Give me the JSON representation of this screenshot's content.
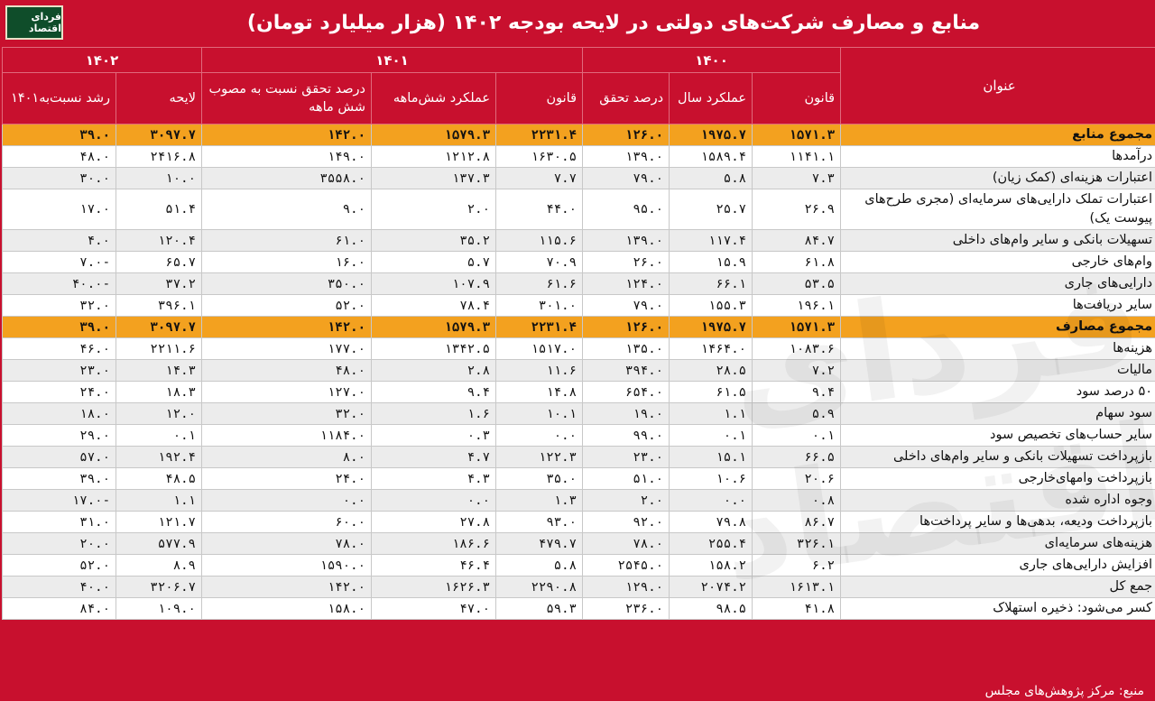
{
  "title": "منابع و مصارف شرکت‌های دولتی در لایحه بودجه ۱۴۰۲ (هزار میلیارد تومان)",
  "logo_text": "فردای اقتصاد",
  "watermark_text": "فردای اقتصاد",
  "header": {
    "row_label": "عنوان",
    "years": [
      "۱۴۰۰",
      "۱۴۰۱",
      "۱۴۰۲"
    ],
    "columns": [
      "قانون",
      "عملکرد سال",
      "درصد تحقق",
      "قانون",
      "عملکرد شش‌ماهه",
      "درصد تحقق نسبت به مصوب شش ماهه",
      "لایحه",
      "رشد نسبت‌به۱۴۰۱"
    ]
  },
  "rows": [
    {
      "label": "مجموع منابع",
      "total": true,
      "values": [
        "۱۵۷۱.۳",
        "۱۹۷۵.۷",
        "۱۲۶.۰",
        "۲۲۳۱.۴",
        "۱۵۷۹.۳",
        "۱۴۲.۰",
        "۳۰۹۷.۷",
        "۳۹.۰"
      ]
    },
    {
      "label": "درآمدها",
      "values": [
        "۱۱۴۱.۱",
        "۱۵۸۹.۴",
        "۱۳۹.۰",
        "۱۶۳۰.۵",
        "۱۲۱۲.۸",
        "۱۴۹.۰",
        "۲۴۱۶.۸",
        "۴۸.۰"
      ]
    },
    {
      "label": "اعتبارات هزینه‌ای (کمک زیان)",
      "values": [
        "۷.۳",
        "۵.۸",
        "۷۹.۰",
        "۷.۷",
        "۱۳۷.۳",
        "۳۵۵۸.۰",
        "۱۰.۰",
        "۳۰.۰"
      ]
    },
    {
      "label": "اعتبارات تملک دارایی‌های سرمایه‌ای (مجری طرح‌های پیوست یک)",
      "tall": true,
      "values": [
        "۲۶.۹",
        "۲۵.۷",
        "۹۵.۰",
        "۴۴.۰",
        "۲.۰",
        "۹.۰",
        "۵۱.۴",
        "۱۷.۰"
      ]
    },
    {
      "label": "تسهیلات بانکی و سایر وام‌های داخلی",
      "values": [
        "۸۴.۷",
        "۱۱۷.۴",
        "۱۳۹.۰",
        "۱۱۵.۶",
        "۳۵.۲",
        "۶۱.۰",
        "۱۲۰.۴",
        "۴.۰"
      ]
    },
    {
      "label": "وام‌های خارجی",
      "values": [
        "۶۱.۸",
        "۱۵.۹",
        "۲۶.۰",
        "۷۰.۹",
        "۵.۷",
        "۱۶.۰",
        "۶۵.۷",
        "-۷.۰"
      ]
    },
    {
      "label": "دارایی‌های جاری",
      "values": [
        "۵۳.۵",
        "۶۶.۱",
        "۱۲۴.۰",
        "۶۱.۶",
        "۱۰۷.۹",
        "۳۵۰.۰",
        "۳۷.۲",
        "-۴۰.۰"
      ]
    },
    {
      "label": "سایر دریافت‌ها",
      "values": [
        "۱۹۶.۱",
        "۱۵۵.۳",
        "۷۹.۰",
        "۳۰۱.۰",
        "۷۸.۴",
        "۵۲.۰",
        "۳۹۶.۱",
        "۳۲.۰"
      ]
    },
    {
      "label": "مجموع مصارف",
      "total": true,
      "values": [
        "۱۵۷۱.۳",
        "۱۹۷۵.۷",
        "۱۲۶.۰",
        "۲۲۳۱.۴",
        "۱۵۷۹.۳",
        "۱۴۲.۰",
        "۳۰۹۷.۷",
        "۳۹.۰"
      ]
    },
    {
      "label": "هزینه‌ها",
      "values": [
        "۱۰۸۳.۶",
        "۱۴۶۴.۰",
        "۱۳۵.۰",
        "۱۵۱۷.۰",
        "۱۳۴۲.۵",
        "۱۷۷.۰",
        "۲۲۱۱.۶",
        "۴۶.۰"
      ]
    },
    {
      "label": "مالیات",
      "values": [
        "۷.۲",
        "۲۸.۵",
        "۳۹۴.۰",
        "۱۱.۶",
        "۲.۸",
        "۴۸.۰",
        "۱۴.۳",
        "۲۳.۰"
      ]
    },
    {
      "label": "۵۰ درصد سود",
      "values": [
        "۹.۴",
        "۶۱.۵",
        "۶۵۴.۰",
        "۱۴.۸",
        "۹.۴",
        "۱۲۷.۰",
        "۱۸.۳",
        "۲۴.۰"
      ]
    },
    {
      "label": "سود سهام",
      "values": [
        "۵.۹",
        "۱.۱",
        "۱۹.۰",
        "۱۰.۱",
        "۱.۶",
        "۳۲.۰",
        "۱۲.۰",
        "۱۸.۰"
      ]
    },
    {
      "label": "سایر حساب‌های تخصیص سود",
      "values": [
        "۰.۱",
        "۰.۱",
        "۹۹.۰",
        "۰.۰",
        "۰.۳",
        "۱۱۸۴.۰",
        "۰.۱",
        "۲۹.۰"
      ]
    },
    {
      "label": "بازپرداخت تسهیلات بانکی و سایر وام‌های داخلی",
      "values": [
        "۶۶.۵",
        "۱۵.۱",
        "۲۳.۰",
        "۱۲۲.۳",
        "۴.۷",
        "۸.۰",
        "۱۹۲.۴",
        "۵۷.۰"
      ]
    },
    {
      "label": "بازپرداخت وامهای‌خارجی",
      "values": [
        "۲۰.۶",
        "۱۰.۶",
        "۵۱.۰",
        "۳۵.۰",
        "۴.۳",
        "۲۴.۰",
        "۴۸.۵",
        "۳۹.۰"
      ]
    },
    {
      "label": "وجوه اداره شده",
      "values": [
        "۰.۸",
        "۰.۰",
        "۲.۰",
        "۱.۳",
        "۰.۰",
        "۰.۰",
        "۱.۱",
        "-۱۷.۰"
      ]
    },
    {
      "label": "بازپرداخت ودیعه، بدهی‌ها و سایر پرداخت‌ها",
      "values": [
        "۸۶.۷",
        "۷۹.۸",
        "۹۲.۰",
        "۹۳.۰",
        "۲۷.۸",
        "۶۰.۰",
        "۱۲۱.۷",
        "۳۱.۰"
      ]
    },
    {
      "label": "هزینه‌های سرمایه‌ای",
      "values": [
        "۳۲۶.۱",
        "۲۵۵.۴",
        "۷۸.۰",
        "۴۷۹.۷",
        "۱۸۶.۶",
        "۷۸.۰",
        "۵۷۷.۹",
        "۲۰.۰"
      ]
    },
    {
      "label": "افزایش دارایی‌های جاری",
      "values": [
        "۶.۲",
        "۱۵۸.۲",
        "۲۵۴۵.۰",
        "۵.۸",
        "۴۶.۴",
        "۱۵۹۰.۰",
        "۸.۹",
        "۵۲.۰"
      ]
    },
    {
      "label": "جمع کل",
      "values": [
        "۱۶۱۳.۱",
        "۲۰۷۴.۲",
        "۱۲۹.۰",
        "۲۲۹۰.۸",
        "۱۶۲۶.۳",
        "۱۴۲.۰",
        "۳۲۰۶.۷",
        "۴۰.۰"
      ]
    },
    {
      "label": "کسر می‌شود: ذخیره استهلاک",
      "values": [
        "۴۱.۸",
        "۹۸.۵",
        "۲۳۶.۰",
        "۵۹.۳",
        "۴۷.۰",
        "۱۵۸.۰",
        "۱۰۹.۰",
        "۸۴.۰"
      ]
    }
  ],
  "source": "منبع: مرکز پژوهش‌های مجلس"
}
